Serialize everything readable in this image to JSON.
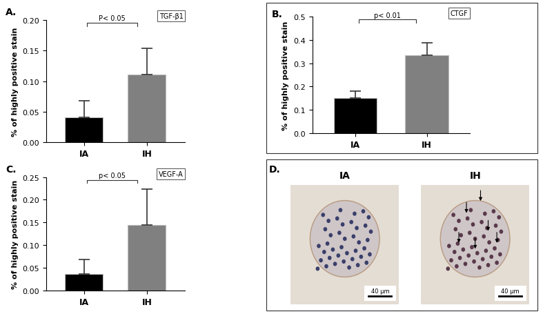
{
  "chart_data": [
    {
      "panel": "A.",
      "tag": "TGF-β1",
      "type": "bar",
      "categories": [
        "IA",
        "IH"
      ],
      "values": [
        0.041,
        0.111
      ],
      "errors": [
        0.027,
        0.042
      ],
      "colors": [
        "#000000",
        "#808080"
      ],
      "ylabel": "% of highly positive stain",
      "annotation": "P< 0.05",
      "ylim": [
        0,
        0.2
      ],
      "yticks": [
        {
          "value": 0,
          "label": "0.00"
        },
        {
          "value": 0.05,
          "label": "0.05"
        },
        {
          "value": 0.1,
          "label": "0.10"
        },
        {
          "value": 0.15,
          "label": "0.15"
        },
        {
          "value": 0.2,
          "label": "0.20"
        }
      ]
    },
    {
      "panel": "B.",
      "tag": "CTGF",
      "type": "bar",
      "categories": [
        "IA",
        "IH"
      ],
      "values": [
        0.152,
        0.333
      ],
      "errors": [
        0.028,
        0.054
      ],
      "colors": [
        "#000000",
        "#808080"
      ],
      "ylabel": "% of highly positive stain",
      "annotation": "p< 0.01",
      "ylim": [
        0,
        0.5
      ],
      "yticks": [
        {
          "value": 0,
          "label": "0.0"
        },
        {
          "value": 0.1,
          "label": "0.1"
        },
        {
          "value": 0.2,
          "label": "0.2"
        },
        {
          "value": 0.3,
          "label": "0.3"
        },
        {
          "value": 0.4,
          "label": "0.4"
        },
        {
          "value": 0.5,
          "label": "0.5"
        }
      ]
    },
    {
      "panel": "C.",
      "tag": "VEGF-A",
      "type": "bar",
      "categories": [
        "IA",
        "IH"
      ],
      "values": [
        0.037,
        0.145
      ],
      "errors": [
        0.031,
        0.079
      ],
      "colors": [
        "#000000",
        "#808080"
      ],
      "ylabel": "% of highly positive stain",
      "annotation": "p< 0.05",
      "ylim": [
        0,
        0.25
      ],
      "yticks": [
        {
          "value": 0,
          "label": "0.00"
        },
        {
          "value": 0.05,
          "label": "0.05"
        },
        {
          "value": 0.1,
          "label": "0.10"
        },
        {
          "value": 0.15,
          "label": "0.15"
        },
        {
          "value": 0.2,
          "label": "0.20"
        },
        {
          "value": 0.25,
          "label": "0.25"
        }
      ]
    }
  ],
  "image_panel": {
    "panel": "D.",
    "images": [
      {
        "label": "IA",
        "scale_bar": "40 µm"
      },
      {
        "label": "IH",
        "scale_bar": "40 µm"
      }
    ]
  }
}
